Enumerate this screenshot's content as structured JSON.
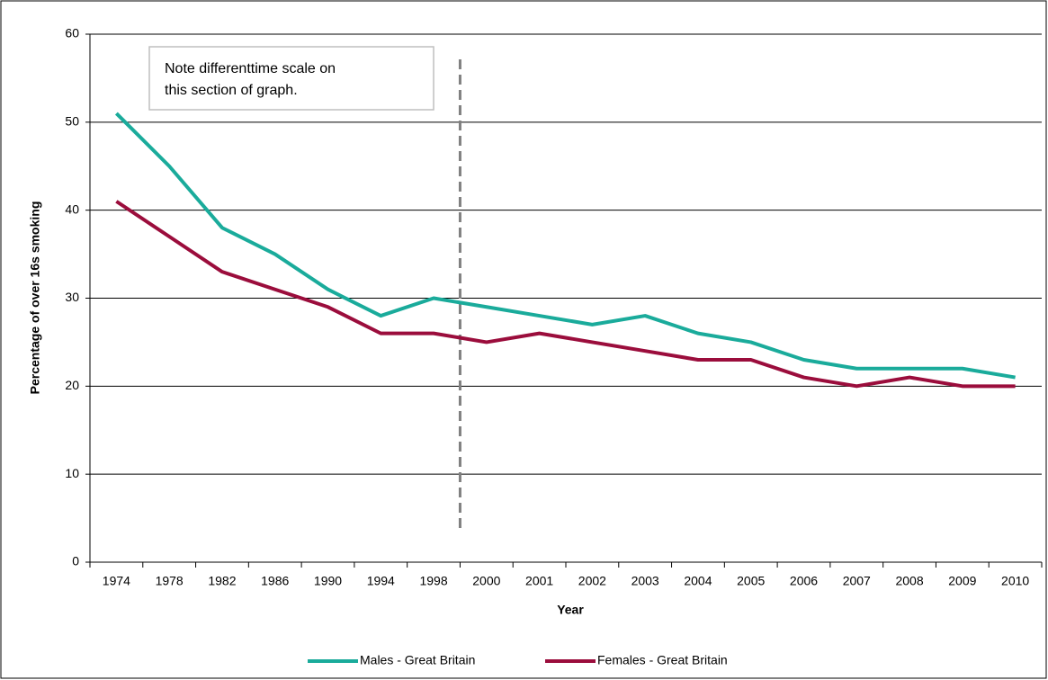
{
  "chart_data": {
    "type": "line",
    "x_label": "Year",
    "y_label": "Percentage of over 16s smoking",
    "categories": [
      "1974",
      "1978",
      "1982",
      "1986",
      "1990",
      "1994",
      "1998",
      "2000",
      "2001",
      "2002",
      "2003",
      "2004",
      "2005",
      "2006",
      "2007",
      "2008",
      "2009",
      "2010"
    ],
    "series": [
      {
        "name": "Males - Great Britain",
        "color": "#1aab9b",
        "values": [
          51,
          45,
          38,
          35,
          31,
          28,
          30,
          29,
          28,
          27,
          28,
          26,
          25,
          23,
          22,
          22,
          22,
          21
        ]
      },
      {
        "name": "Females - Great Britain",
        "color": "#9b0d3c",
        "values": [
          41,
          37,
          33,
          31,
          29,
          26,
          26,
          25,
          26,
          25,
          24,
          23,
          23,
          21,
          20,
          21,
          20,
          20
        ]
      }
    ],
    "ylim": [
      0,
      60
    ],
    "yticks": [
      0,
      10,
      20,
      30,
      40,
      50,
      60
    ],
    "grid": true,
    "legend": "bottom",
    "annotation": [
      "Note differenttime scale on",
      "this section of graph."
    ]
  }
}
